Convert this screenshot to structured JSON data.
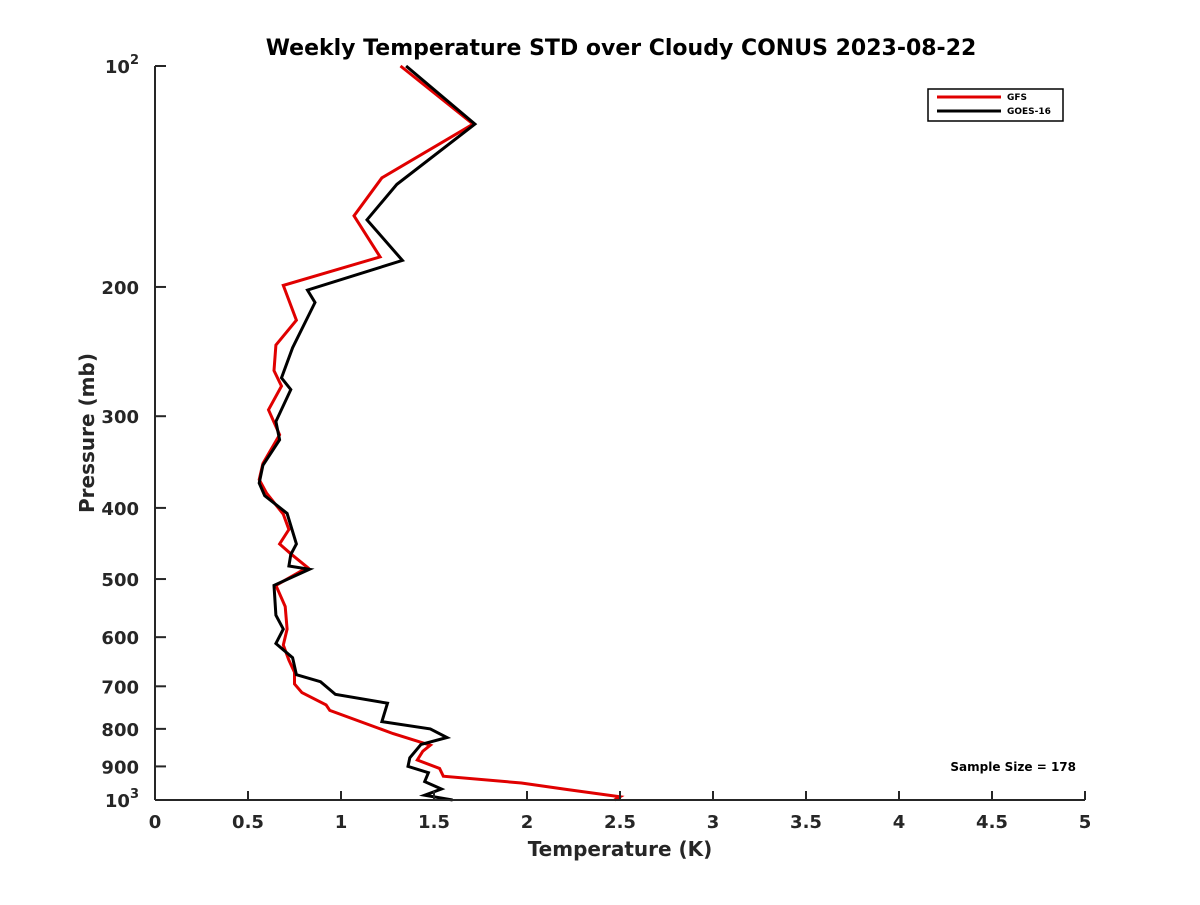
{
  "chart_data": {
    "type": "line",
    "title": "Weekly Temperature STD over Cloudy CONUS 2023-08-22",
    "xlabel": "Temperature (K)",
    "ylabel": "Pressure (mb)",
    "xlim": [
      0,
      5
    ],
    "ylim": [
      100,
      1000
    ],
    "y_scale": "log",
    "y_reversed": true,
    "grid": false,
    "legend_position": "top-right",
    "x_ticks": [
      0,
      0.5,
      1,
      1.5,
      2,
      2.5,
      3,
      3.5,
      4,
      4.5,
      5
    ],
    "x_tick_labels": [
      "0",
      "0.5",
      "1",
      "1.5",
      "2",
      "2.5",
      "3",
      "3.5",
      "4",
      "4.5",
      "5"
    ],
    "y_ticks": [
      {
        "value": 100,
        "base": "10",
        "exp": "2"
      },
      {
        "value": 200,
        "label": "200"
      },
      {
        "value": 300,
        "label": "300"
      },
      {
        "value": 400,
        "label": "400"
      },
      {
        "value": 500,
        "label": "500"
      },
      {
        "value": 600,
        "label": "600"
      },
      {
        "value": 700,
        "label": "700"
      },
      {
        "value": 800,
        "label": "800"
      },
      {
        "value": 900,
        "label": "900"
      },
      {
        "value": 1000,
        "base": "10",
        "exp": "3"
      }
    ],
    "annotation": "Sample Size = 178",
    "series": [
      {
        "name": "GFS",
        "color": "#e00000",
        "x": [
          1.32,
          1.71,
          1.22,
          1.07,
          1.21,
          0.69,
          0.76,
          0.65,
          0.64,
          0.68,
          0.61,
          0.67,
          0.58,
          0.56,
          0.6,
          0.69,
          0.72,
          0.67,
          0.73,
          0.82,
          0.65,
          0.7,
          0.71,
          0.69,
          0.72,
          0.75,
          0.75,
          0.79,
          0.92,
          0.94,
          1.2,
          1.28,
          1.48,
          1.44,
          1.41,
          1.53,
          1.55,
          1.97,
          2.22,
          2.5,
          2.47
        ],
        "y": [
          100,
          120,
          142,
          160,
          182,
          199,
          222,
          240,
          260,
          273,
          294,
          318,
          348,
          366,
          382,
          408,
          428,
          448,
          462,
          482,
          510,
          545,
          585,
          615,
          645,
          670,
          695,
          714,
          742,
          755,
          798,
          812,
          842,
          858,
          882,
          906,
          928,
          948,
          968,
          990,
          1000
        ]
      },
      {
        "name": "GOES-16",
        "color": "#000000",
        "x": [
          1.35,
          1.72,
          1.3,
          1.14,
          1.33,
          0.82,
          0.86,
          0.74,
          0.68,
          0.73,
          0.65,
          0.67,
          0.58,
          0.56,
          0.59,
          0.71,
          0.76,
          0.73,
          0.72,
          0.83,
          0.64,
          0.65,
          0.69,
          0.65,
          0.74,
          0.76,
          0.89,
          0.97,
          1.25,
          1.22,
          1.48,
          1.57,
          1.43,
          1.37,
          1.36,
          1.47,
          1.45,
          1.54,
          1.45,
          1.6
        ],
        "y": [
          100,
          120,
          145,
          162,
          184,
          202,
          210,
          242,
          266,
          276,
          305,
          323,
          350,
          370,
          385,
          407,
          448,
          463,
          480,
          485,
          510,
          560,
          585,
          612,
          640,
          675,
          690,
          718,
          738,
          782,
          800,
          822,
          840,
          876,
          900,
          918,
          944,
          966,
          985,
          1000
        ]
      }
    ]
  }
}
